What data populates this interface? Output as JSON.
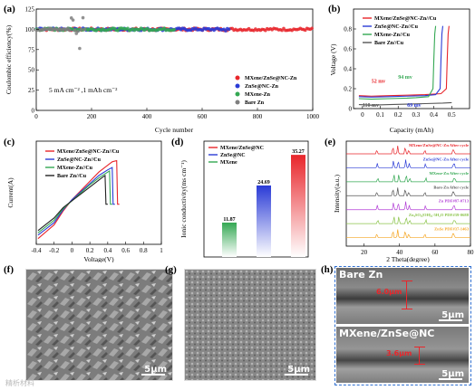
{
  "chart_data": [
    {
      "id": "a",
      "type": "scatter",
      "panel_label": "(a)",
      "xlabel": "Cycle number",
      "ylabel": "Coulombic efficiency(%)",
      "xlim": [
        0,
        1000
      ],
      "ylim": [
        0,
        125
      ],
      "xticks": [
        0,
        200,
        400,
        600,
        800,
        1000
      ],
      "yticks": [
        0,
        25,
        50,
        75,
        100,
        125
      ],
      "annotation": "5 mA cm⁻² ,1 mAh cm⁻²",
      "legend_position": "bottom-right",
      "series": [
        {
          "name": "MXene/ZnSe@NC-Zn",
          "color": "#e8262b",
          "end_cycle": 1000,
          "mean": 100
        },
        {
          "name": "ZnSe@NC-Zn",
          "color": "#2a3bd6",
          "end_cycle": 700,
          "mean": 100
        },
        {
          "name": "MXene-Zn",
          "color": "#34a853",
          "end_cycle": 500,
          "mean": 100
        },
        {
          "name": "Bare Zn",
          "color": "#7f7f7f",
          "end_cycle": 180,
          "mean": 100
        }
      ]
    },
    {
      "id": "b",
      "type": "line",
      "panel_label": "(b)",
      "xlabel": "Capacity (mAh)",
      "ylabel": "Voltage (V)",
      "xlim": [
        -0.05,
        0.6
      ],
      "ylim": [
        0,
        1.0
      ],
      "xticks": [
        0.0,
        0.1,
        0.2,
        0.3,
        0.4,
        0.5
      ],
      "yticks": [
        0.0,
        0.2,
        0.4,
        0.6,
        0.8
      ],
      "legend_position": "top-left",
      "annotations": [
        {
          "text": "52 mv",
          "color": "#e8262b"
        },
        {
          "text": "94 mv",
          "color": "#34a853"
        },
        {
          "text": "110 mv",
          "color": "#555555"
        },
        {
          "text": "69 mv",
          "color": "#2a3bd6"
        }
      ],
      "series": [
        {
          "name": "MXene/ZnSe@NC-Zn//Cu",
          "color": "#e8262b",
          "x": [
            -0.02,
            0.05,
            0.15,
            0.25,
            0.35,
            0.44,
            0.47,
            0.475,
            0.48,
            0.485
          ],
          "y": [
            0.13,
            0.125,
            0.13,
            0.135,
            0.14,
            0.15,
            0.2,
            0.5,
            0.75,
            0.83
          ]
        },
        {
          "name": "ZnSe@NC-Zn//Cu",
          "color": "#2a3bd6",
          "x": [
            -0.02,
            0.05,
            0.15,
            0.25,
            0.35,
            0.41,
            0.435,
            0.44,
            0.445,
            0.45
          ],
          "y": [
            0.12,
            0.115,
            0.12,
            0.125,
            0.13,
            0.14,
            0.2,
            0.5,
            0.75,
            0.83
          ]
        },
        {
          "name": "MXene-Zn//Cu",
          "color": "#34a853",
          "x": [
            -0.02,
            0.05,
            0.15,
            0.25,
            0.3,
            0.37,
            0.395,
            0.4,
            0.405,
            0.41
          ],
          "y": [
            0.1,
            0.095,
            0.1,
            0.105,
            0.11,
            0.12,
            0.2,
            0.5,
            0.75,
            0.83
          ]
        },
        {
          "name": "Bare Zn//Cu",
          "color": "#555555",
          "x": [
            -0.02,
            0.05,
            0.15,
            0.25,
            0.35,
            0.45,
            0.5
          ],
          "y": [
            0.04,
            0.035,
            0.04,
            0.045,
            0.05,
            0.055,
            0.06
          ]
        }
      ]
    },
    {
      "id": "c",
      "type": "line",
      "panel_label": "(c)",
      "xlabel": "Voltage(V)",
      "ylabel": "Current(A)",
      "xlim": [
        -0.4,
        1.0
      ],
      "xticks": [
        -0.4,
        -0.2,
        0.0,
        0.2,
        0.4,
        0.6,
        0.8,
        1.0
      ],
      "ylim": [
        -0.35,
        0.55
      ],
      "legend_position": "top-left",
      "series": [
        {
          "name": "MXene/ZnSe@NC-Zn//Cu",
          "color": "#e8262b",
          "x": [
            -0.38,
            -0.2,
            -0.1,
            0.0,
            0.1,
            0.2,
            0.3,
            0.4,
            0.45,
            0.5,
            0.51,
            0.53
          ],
          "y": [
            -0.3,
            -0.18,
            -0.06,
            0.04,
            0.12,
            0.2,
            0.28,
            0.34,
            0.37,
            0.38,
            0.0,
            0.0
          ]
        },
        {
          "name": "ZnSe@NC-Zn//Cu",
          "color": "#2a3bd6",
          "x": [
            -0.38,
            -0.2,
            -0.1,
            0.0,
            0.1,
            0.2,
            0.3,
            0.4,
            0.45,
            0.46,
            0.48
          ],
          "y": [
            -0.27,
            -0.16,
            -0.05,
            0.04,
            0.11,
            0.18,
            0.25,
            0.3,
            0.32,
            0.0,
            0.0
          ]
        },
        {
          "name": "MXene-Zn//Cu",
          "color": "#34a853",
          "x": [
            -0.38,
            -0.2,
            -0.1,
            0.0,
            0.1,
            0.2,
            0.3,
            0.38,
            0.42,
            0.43,
            0.45
          ],
          "y": [
            -0.25,
            -0.14,
            -0.04,
            0.03,
            0.1,
            0.17,
            0.23,
            0.27,
            0.29,
            0.0,
            0.0
          ]
        },
        {
          "name": "Bare Zn//Cu",
          "color": "#222222",
          "x": [
            -0.38,
            -0.2,
            -0.1,
            0.0,
            0.1,
            0.2,
            0.3,
            0.35,
            0.37,
            0.38,
            0.4
          ],
          "y": [
            -0.23,
            -0.12,
            -0.03,
            0.03,
            0.09,
            0.15,
            0.21,
            0.24,
            0.25,
            0.0,
            0.0
          ]
        }
      ]
    },
    {
      "id": "d",
      "type": "bar",
      "panel_label": "(d)",
      "ylabel": "Ionic conductivity(ms cm⁻¹)",
      "ylim": [
        0,
        40
      ],
      "legend_position": "top-left",
      "categories": [
        "MXene/ZnSe@NC",
        "ZnSe@NC",
        "MXene"
      ],
      "values": [
        35.27,
        24.69,
        11.87
      ],
      "value_labels": [
        "35.27",
        "24.69",
        "11.87"
      ],
      "colors": [
        "#e8262b",
        "#2a3bd6",
        "#34a853"
      ]
    },
    {
      "id": "e",
      "type": "line",
      "panel_label": "(e)",
      "xlabel": "2 Theta(degree)",
      "ylabel": "Intensity(a.u.)",
      "xlim": [
        10,
        80
      ],
      "xticks": [
        20,
        40,
        60,
        80
      ],
      "patterns": [
        {
          "name": "MXene/ZnSe@NC-Zn After cycle",
          "color": "#e8262b"
        },
        {
          "name": "ZnSe@NC-Zn After cycle",
          "color": "#2a3bd6"
        },
        {
          "name": "MXene-Zn After cycle",
          "color": "#34a853"
        },
        {
          "name": "Bare-Zn After cycle",
          "color": "#555555"
        },
        {
          "name": "Zn PDF#87-0713",
          "color": "#b23fd6"
        },
        {
          "name": "Zn₄SO₄(OH)₆·5H₂O PDF#39-0688",
          "color": "#8bc34a"
        },
        {
          "name": "ZnSe PDF#37-1463",
          "color": "#f5a623"
        }
      ]
    }
  ],
  "images": {
    "f": {
      "panel_label": "(f)",
      "scale": "5μm"
    },
    "g": {
      "panel_label": "(g)",
      "scale": "5μm"
    },
    "h": {
      "panel_label": "(h)",
      "top_label": "Bare Zn",
      "top_thickness": "6.0μm",
      "bottom_label": "MXene/ZnSe@NC",
      "bottom_thickness": "3.6μm",
      "scale": "5μm"
    }
  },
  "watermark": "精析材料"
}
